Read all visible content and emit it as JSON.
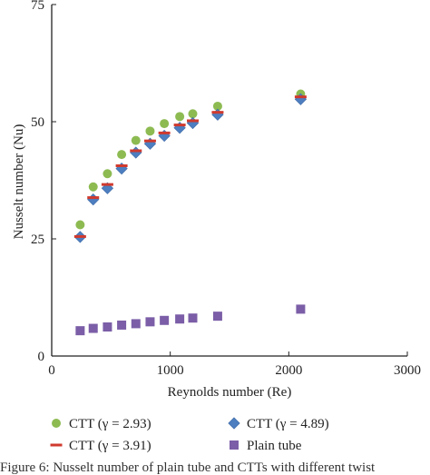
{
  "chart_data": {
    "type": "scatter",
    "xlabel": "Reynolds number (Re)",
    "ylabel": "Nusselt number (Nu)",
    "xlim": [
      0,
      3000
    ],
    "ylim": [
      0,
      75
    ],
    "x_ticks": [
      "0",
      "1000",
      "2000",
      "3000"
    ],
    "y_ticks": [
      "0",
      "25",
      "50",
      "75"
    ],
    "grid": false,
    "legend_position": "bottom",
    "series": [
      {
        "name": "CTT (γ = 2.93)",
        "marker": "circle",
        "color": "#8dbb52",
        "points": [
          [
            240,
            28.0
          ],
          [
            350,
            36.1
          ],
          [
            470,
            38.9
          ],
          [
            590,
            43.0
          ],
          [
            710,
            46.0
          ],
          [
            830,
            48.0
          ],
          [
            950,
            49.6
          ],
          [
            1080,
            51.1
          ],
          [
            1190,
            51.7
          ],
          [
            1400,
            53.3
          ],
          [
            2100,
            55.9
          ]
        ]
      },
      {
        "name": "CTT (γ = 3.91)",
        "marker": "dash",
        "color": "#d03a2e",
        "points": [
          [
            240,
            25.5
          ],
          [
            350,
            33.8
          ],
          [
            470,
            36.6
          ],
          [
            590,
            40.6
          ],
          [
            710,
            43.8
          ],
          [
            830,
            45.9
          ],
          [
            950,
            47.6
          ],
          [
            1080,
            49.3
          ],
          [
            1190,
            50.2
          ],
          [
            1400,
            52.0
          ],
          [
            2100,
            55.3
          ]
        ]
      },
      {
        "name": "CTT (γ = 4.89)",
        "marker": "diamond",
        "color": "#4d7ec0",
        "points": [
          [
            240,
            25.4
          ],
          [
            350,
            33.4
          ],
          [
            470,
            35.8
          ],
          [
            590,
            40.0
          ],
          [
            710,
            43.4
          ],
          [
            830,
            45.3
          ],
          [
            950,
            47.0
          ],
          [
            1080,
            48.7
          ],
          [
            1190,
            49.7
          ],
          [
            1400,
            51.5
          ],
          [
            2100,
            54.8
          ]
        ]
      },
      {
        "name": "Plain tube",
        "marker": "square",
        "color": "#7b5ea7",
        "points": [
          [
            240,
            5.4
          ],
          [
            350,
            5.9
          ],
          [
            470,
            6.2
          ],
          [
            590,
            6.6
          ],
          [
            710,
            6.9
          ],
          [
            830,
            7.3
          ],
          [
            950,
            7.6
          ],
          [
            1080,
            7.9
          ],
          [
            1190,
            8.1
          ],
          [
            1400,
            8.5
          ],
          [
            2100,
            10.0
          ]
        ]
      }
    ]
  },
  "caption": "Figure 6: Nusselt number of plain tube and CTTs with different twist"
}
